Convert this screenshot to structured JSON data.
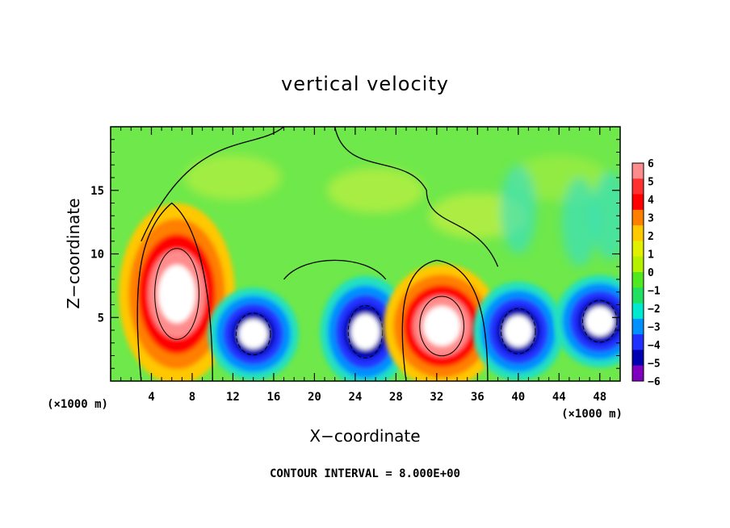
{
  "chart_data": {
    "type": "heatmap",
    "title": "vertical velocity",
    "xlabel": "X−coordinate",
    "ylabel": "Z−coordinate",
    "x_unit_left": "(×1000 m)",
    "x_unit_right": "(×1000 m)",
    "xlim": [
      0,
      50
    ],
    "ylim": [
      0,
      20
    ],
    "x_ticks": [
      "4",
      "8",
      "12",
      "16",
      "20",
      "24",
      "28",
      "32",
      "36",
      "40",
      "44",
      "48"
    ],
    "x_tick_values": [
      4,
      8,
      12,
      16,
      20,
      24,
      28,
      32,
      36,
      40,
      44,
      48
    ],
    "y_ticks": [
      "5",
      "10",
      "15"
    ],
    "y_tick_values": [
      5,
      10,
      15
    ],
    "colorbar": {
      "ticks": [
        "6",
        "5",
        "4",
        "3",
        "2",
        "1",
        "0",
        "−1",
        "−2",
        "−3",
        "−4",
        "−5",
        "−6"
      ],
      "values": [
        6,
        5,
        4,
        3,
        2,
        1,
        0,
        -1,
        -2,
        -3,
        -4,
        -5,
        -6
      ],
      "colors": [
        "#ff8c8c",
        "#ff3030",
        "#ff0000",
        "#ff7f00",
        "#ffc800",
        "#e0f000",
        "#b4f000",
        "#50e820",
        "#20e060",
        "#00e8d0",
        "#0090ff",
        "#2030ff",
        "#0000b0",
        "#8000c0"
      ]
    },
    "features": [
      {
        "kind": "updraft",
        "x_center": 6.5,
        "z_top": 14,
        "z_bottom": 1,
        "peak": 8
      },
      {
        "kind": "downdraft",
        "x_center": 14,
        "z_top": 7,
        "z_bottom": 1,
        "peak": -6
      },
      {
        "kind": "downdraft",
        "x_center": 25,
        "z_top": 8,
        "z_bottom": 0.5,
        "peak": -8
      },
      {
        "kind": "updraft",
        "x_center": 32.5,
        "z_top": 9,
        "z_bottom": 0.5,
        "peak": 8
      },
      {
        "kind": "downdraft",
        "x_center": 40,
        "z_top": 7.5,
        "z_bottom": 1,
        "peak": -8
      },
      {
        "kind": "downdraft",
        "x_center": 48,
        "z_top": 8,
        "z_bottom": 2,
        "peak": -8
      }
    ],
    "grid": false,
    "legend": "colorbar-right"
  },
  "footer": "CONTOUR INTERVAL = 8.000E+00"
}
